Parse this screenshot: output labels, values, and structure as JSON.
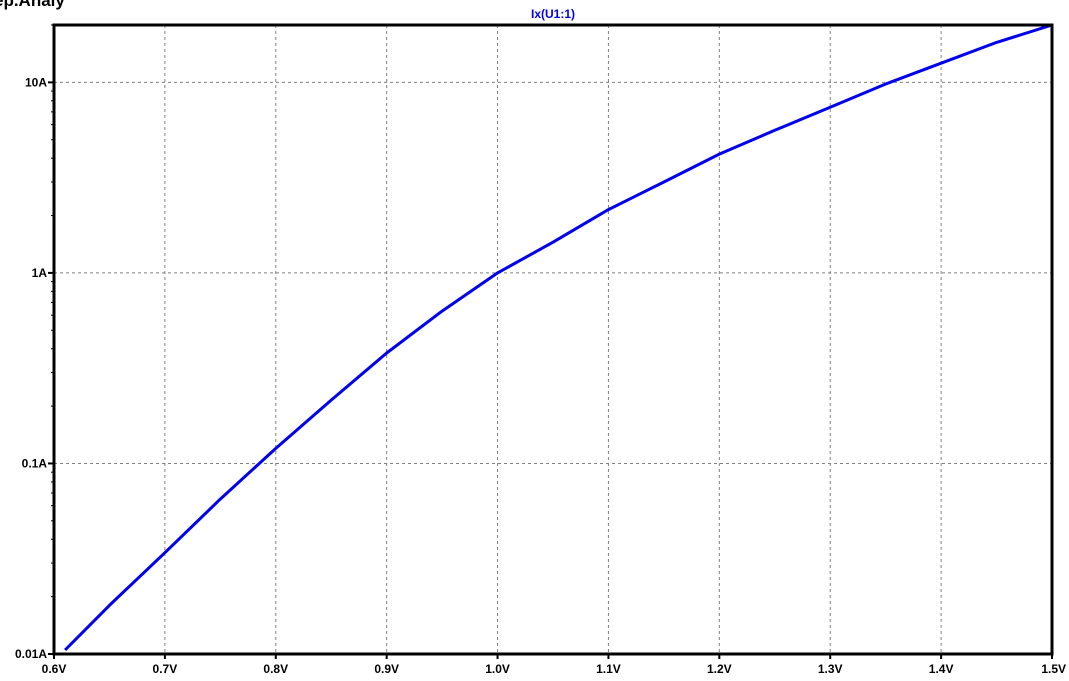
{
  "cropped_heading": "ep.Analy",
  "chart_data": {
    "type": "line",
    "title": "Ix(U1:1)",
    "xlabel": "",
    "ylabel": "",
    "x_scale": "linear",
    "y_scale": "log",
    "xlim": [
      0.6,
      1.5
    ],
    "ylim": [
      0.01,
      20
    ],
    "grid": true,
    "x_ticks": [
      {
        "value": 0.6,
        "label": "0.6V"
      },
      {
        "value": 0.7,
        "label": "0.7V"
      },
      {
        "value": 0.8,
        "label": "0.8V"
      },
      {
        "value": 0.9,
        "label": "0.9V"
      },
      {
        "value": 1.0,
        "label": "1.0V"
      },
      {
        "value": 1.1,
        "label": "1.1V"
      },
      {
        "value": 1.2,
        "label": "1.2V"
      },
      {
        "value": 1.3,
        "label": "1.3V"
      },
      {
        "value": 1.4,
        "label": "1.4V"
      },
      {
        "value": 1.5,
        "label": "1.5V"
      }
    ],
    "y_ticks": [
      {
        "value": 0.01,
        "label": "0.01A"
      },
      {
        "value": 0.1,
        "label": "0.1A"
      },
      {
        "value": 1,
        "label": "1A"
      },
      {
        "value": 10,
        "label": "10A"
      }
    ],
    "series": [
      {
        "name": "Ix(U1:1)",
        "color": "#0000ee",
        "x": [
          0.61,
          0.65,
          0.7,
          0.75,
          0.8,
          0.85,
          0.9,
          0.95,
          1.0,
          1.05,
          1.1,
          1.15,
          1.2,
          1.25,
          1.3,
          1.35,
          1.4,
          1.45,
          1.5
        ],
        "y": [
          0.0105,
          0.018,
          0.034,
          0.065,
          0.12,
          0.215,
          0.38,
          0.63,
          1.0,
          1.45,
          2.15,
          3.0,
          4.2,
          5.6,
          7.4,
          9.8,
          12.6,
          16.2,
          20
        ]
      }
    ]
  }
}
